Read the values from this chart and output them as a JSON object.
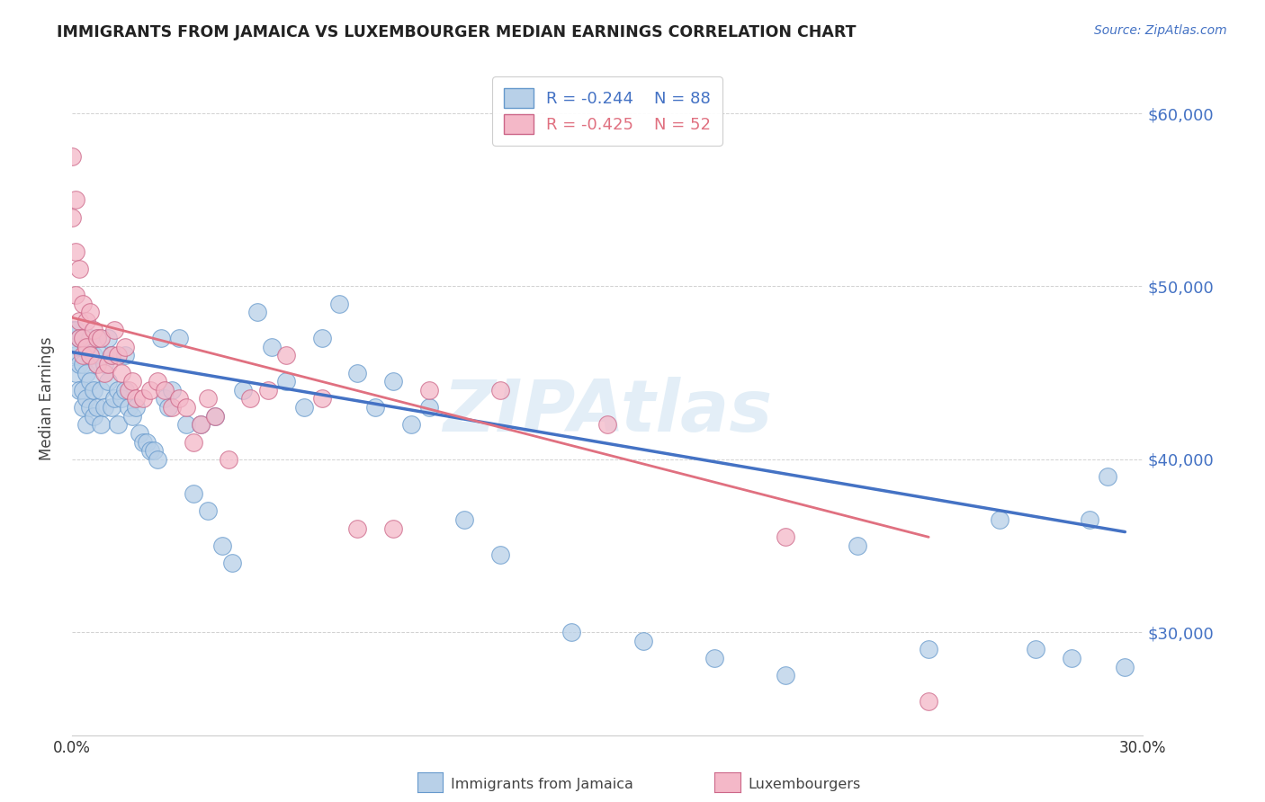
{
  "title": "IMMIGRANTS FROM JAMAICA VS LUXEMBOURGER MEDIAN EARNINGS CORRELATION CHART",
  "source": "Source: ZipAtlas.com",
  "ylabel": "Median Earnings",
  "yticks": [
    30000,
    40000,
    50000,
    60000
  ],
  "ytick_labels": [
    "$30,000",
    "$40,000",
    "$50,000",
    "$60,000"
  ],
  "watermark": "ZIPAtlas",
  "legend_label1": "Immigrants from Jamaica",
  "legend_label2": "Luxembourgers",
  "legend_R1": "R = -0.244",
  "legend_N1": "N = 88",
  "legend_R2": "R = -0.425",
  "legend_N2": "N = 52",
  "color_blue_fill": "#b8d0e8",
  "color_blue_edge": "#6699cc",
  "color_blue_line": "#4472c4",
  "color_pink_fill": "#f4b8c8",
  "color_pink_edge": "#cc6688",
  "color_pink_line": "#e07080",
  "color_title": "#222222",
  "color_source": "#4472c4",
  "color_yticks": "#4472c4",
  "color_xticks": "#333333",
  "background": "#ffffff",
  "xlim": [
    0.0,
    0.3
  ],
  "ylim": [
    24000,
    63000
  ],
  "blue_scatter_x": [
    0.0,
    0.001,
    0.001,
    0.001,
    0.002,
    0.002,
    0.002,
    0.002,
    0.003,
    0.003,
    0.003,
    0.003,
    0.004,
    0.004,
    0.004,
    0.004,
    0.005,
    0.005,
    0.005,
    0.005,
    0.006,
    0.006,
    0.006,
    0.007,
    0.007,
    0.007,
    0.008,
    0.008,
    0.008,
    0.009,
    0.009,
    0.01,
    0.01,
    0.011,
    0.011,
    0.012,
    0.013,
    0.013,
    0.014,
    0.015,
    0.015,
    0.016,
    0.017,
    0.018,
    0.019,
    0.02,
    0.021,
    0.022,
    0.023,
    0.024,
    0.025,
    0.026,
    0.027,
    0.028,
    0.03,
    0.032,
    0.034,
    0.036,
    0.038,
    0.04,
    0.042,
    0.045,
    0.048,
    0.052,
    0.056,
    0.06,
    0.065,
    0.07,
    0.075,
    0.08,
    0.085,
    0.09,
    0.095,
    0.1,
    0.11,
    0.12,
    0.14,
    0.16,
    0.18,
    0.2,
    0.22,
    0.24,
    0.26,
    0.27,
    0.28,
    0.285,
    0.29,
    0.295
  ],
  "blue_scatter_y": [
    47500,
    46000,
    47500,
    45000,
    46500,
    45500,
    47000,
    44000,
    47000,
    45500,
    44000,
    43000,
    46500,
    45000,
    43500,
    42000,
    47000,
    46000,
    44500,
    43000,
    46000,
    44000,
    42500,
    47000,
    45500,
    43000,
    46000,
    44000,
    42000,
    45500,
    43000,
    47000,
    44500,
    46000,
    43000,
    43500,
    44000,
    42000,
    43500,
    46000,
    44000,
    43000,
    42500,
    43000,
    41500,
    41000,
    41000,
    40500,
    40500,
    40000,
    47000,
    43500,
    43000,
    44000,
    47000,
    42000,
    38000,
    42000,
    37000,
    42500,
    35000,
    34000,
    44000,
    48500,
    46500,
    44500,
    43000,
    47000,
    49000,
    45000,
    43000,
    44500,
    42000,
    43000,
    36500,
    34500,
    30000,
    29500,
    28500,
    27500,
    35000,
    29000,
    36500,
    29000,
    28500,
    36500,
    39000,
    28000
  ],
  "pink_scatter_x": [
    0.0,
    0.0,
    0.001,
    0.001,
    0.001,
    0.002,
    0.002,
    0.002,
    0.003,
    0.003,
    0.003,
    0.004,
    0.004,
    0.005,
    0.005,
    0.006,
    0.007,
    0.007,
    0.008,
    0.009,
    0.01,
    0.011,
    0.012,
    0.013,
    0.014,
    0.015,
    0.016,
    0.017,
    0.018,
    0.02,
    0.022,
    0.024,
    0.026,
    0.028,
    0.03,
    0.032,
    0.034,
    0.036,
    0.038,
    0.04,
    0.044,
    0.05,
    0.055,
    0.06,
    0.07,
    0.08,
    0.09,
    0.1,
    0.12,
    0.15,
    0.2,
    0.24
  ],
  "pink_scatter_y": [
    57500,
    54000,
    52000,
    49500,
    55000,
    51000,
    48000,
    47000,
    49000,
    47000,
    46000,
    48000,
    46500,
    48500,
    46000,
    47500,
    47000,
    45500,
    47000,
    45000,
    45500,
    46000,
    47500,
    46000,
    45000,
    46500,
    44000,
    44500,
    43500,
    43500,
    44000,
    44500,
    44000,
    43000,
    43500,
    43000,
    41000,
    42000,
    43500,
    42500,
    40000,
    43500,
    44000,
    46000,
    43500,
    36000,
    36000,
    44000,
    44000,
    42000,
    35500,
    26000
  ],
  "blue_line_x": [
    0.0,
    0.295
  ],
  "blue_line_y": [
    46200,
    35800
  ],
  "pink_line_x": [
    0.0,
    0.24
  ],
  "pink_line_y": [
    48200,
    35500
  ]
}
